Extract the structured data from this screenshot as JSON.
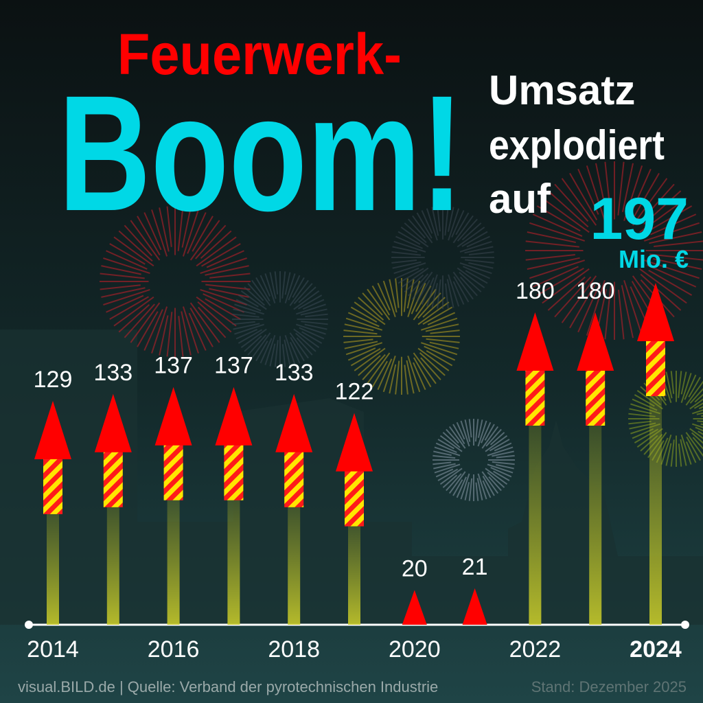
{
  "chart_data": {
    "type": "rocket",
    "title_line1": "Feuerwerk-",
    "title_line2": "Boom!",
    "subtitle": [
      "Umsatz",
      "explodiert",
      "auf"
    ],
    "unit": "Mio. €",
    "categories": [
      "2014",
      null,
      "2016",
      null,
      "2018",
      null,
      "2020",
      null,
      "2022",
      null,
      "2024"
    ],
    "values": [
      129,
      133,
      137,
      137,
      133,
      122,
      20,
      21,
      180,
      180,
      197
    ],
    "ylim": [
      0,
      360
    ],
    "color": "#ff0000",
    "highlight_color": "#00d8e6",
    "source": "visual.BILD.de | Quelle: Verband der pyrotechnischen Industrie",
    "note": "Stand: Dezember 2025"
  }
}
